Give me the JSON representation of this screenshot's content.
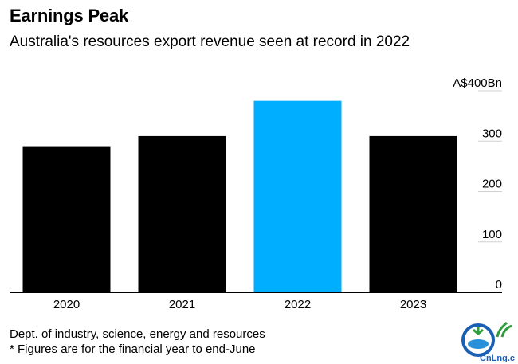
{
  "title": "Earnings Peak",
  "subtitle": "Australia's resources export revenue seen at record in 2022",
  "source": "Dept. of industry, science, energy and resources",
  "footnote": "* Figures are for the financial year to end-June",
  "logo_text": "CnLng.com",
  "colors": {
    "bar": "#000000",
    "highlight": "#00AEFF",
    "grid": "#d0d0d0"
  },
  "chart_data": {
    "type": "bar",
    "categories": [
      "2020",
      "2021",
      "2022",
      "2023"
    ],
    "values": [
      290,
      310,
      380,
      310
    ],
    "highlight_category": "2022",
    "ylim": [
      0,
      400
    ],
    "yticks": [
      0,
      100,
      200,
      300,
      400
    ],
    "ytick_labels": [
      "0",
      "100",
      "200",
      "300",
      "A$400Bn"
    ],
    "xlabel": "",
    "ylabel": "",
    "grid": true,
    "y_axis_position": "right"
  }
}
